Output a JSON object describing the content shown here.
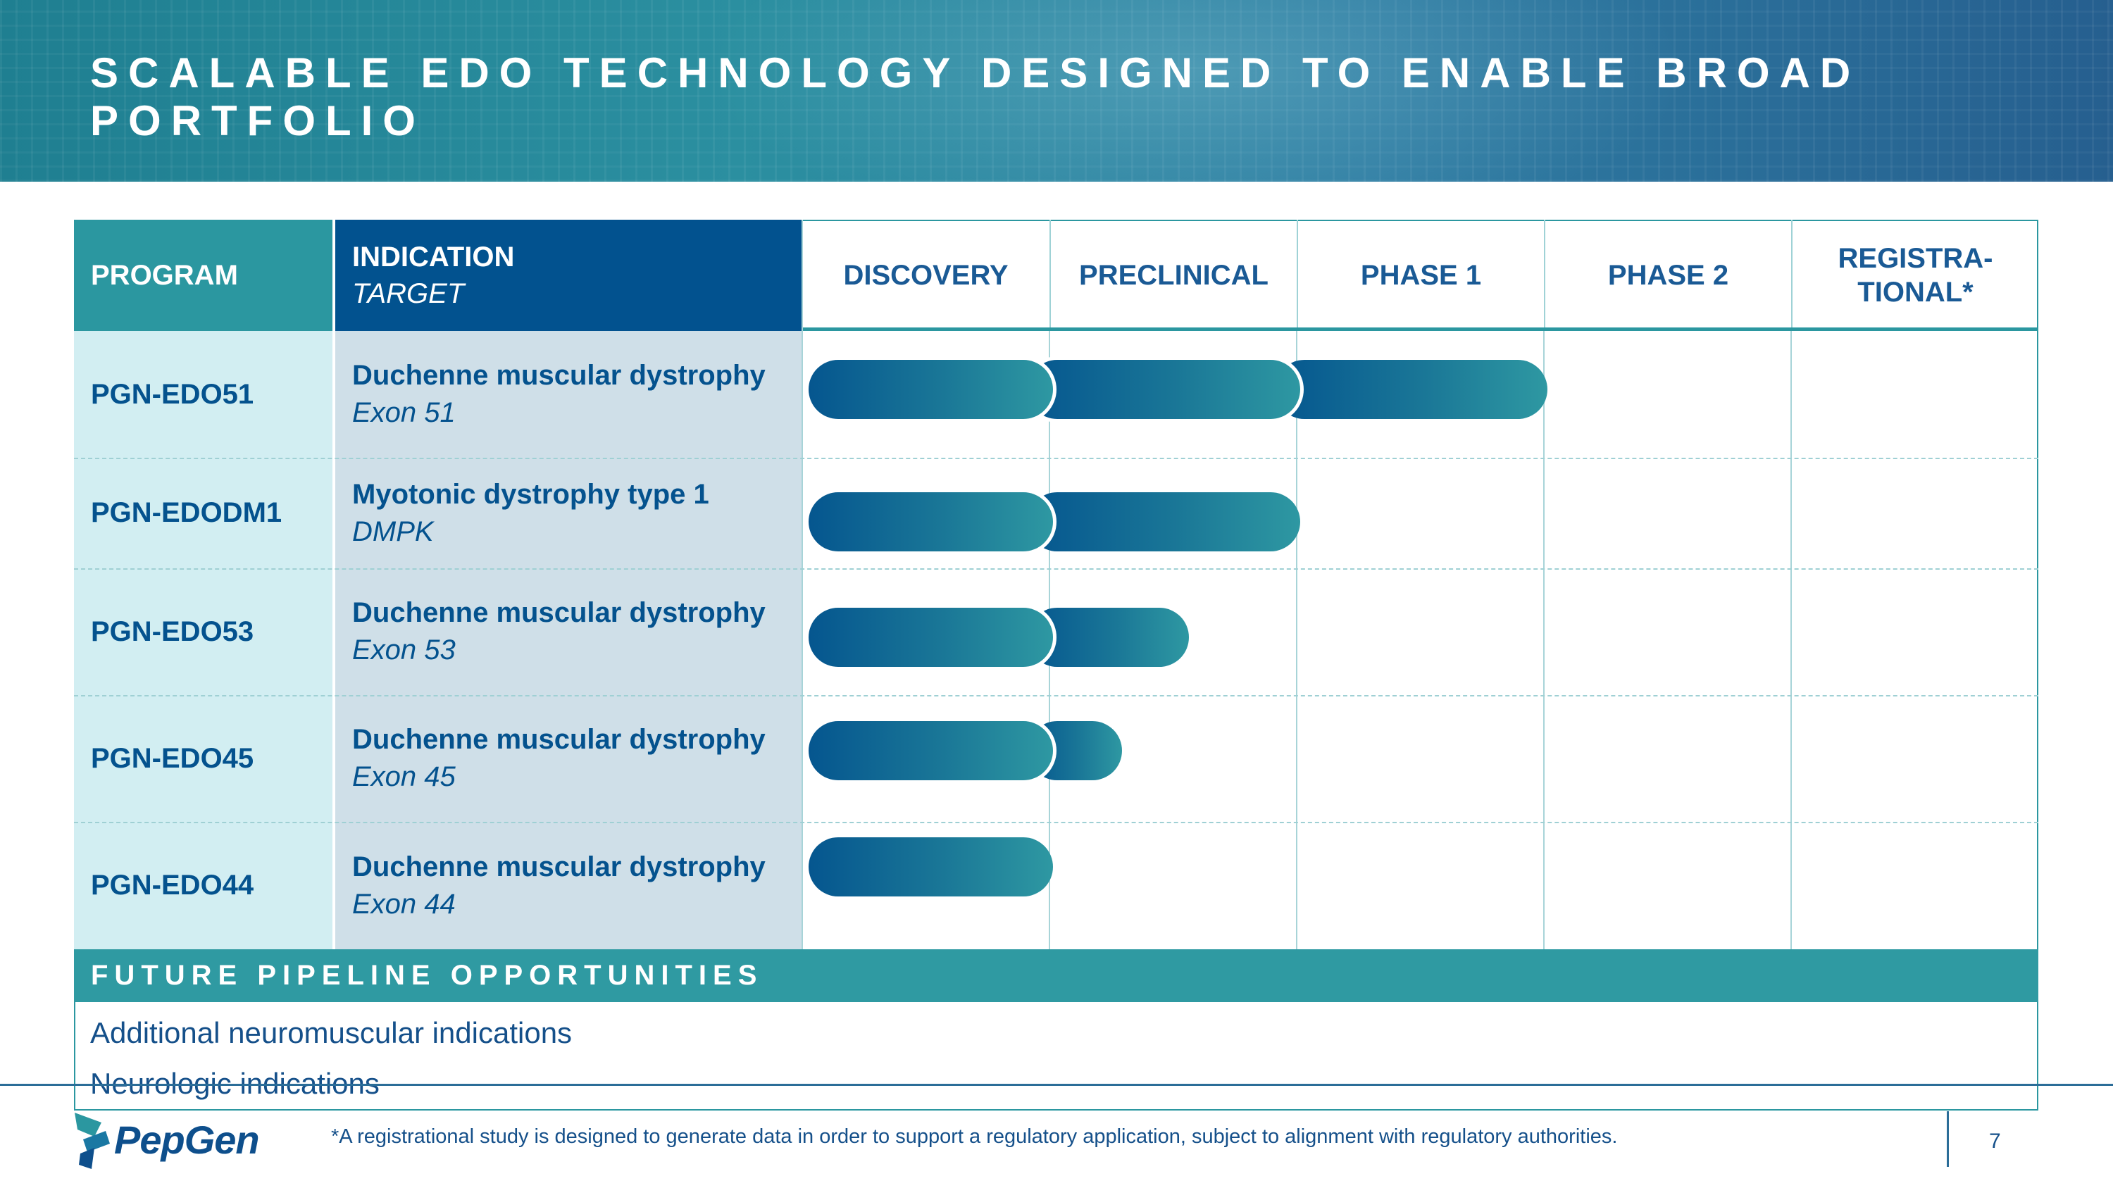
{
  "title": "SCALABLE EDO TECHNOLOGY DESIGNED TO ENABLE BROAD PORTFOLIO",
  "table": {
    "headers": {
      "program": "PROGRAM",
      "indication": "INDICATION",
      "target": "TARGET",
      "stages": [
        "DISCOVERY",
        "PRECLINICAL",
        "PHASE 1",
        "PHASE 2",
        "REGISTRA-\nTIONAL*"
      ]
    },
    "rows": [
      {
        "program": "PGN-EDO51",
        "indication": "Duchenne muscular dystrophy",
        "target": "Exon 51",
        "progress_stages": 3.0
      },
      {
        "program": "PGN-EDODM1",
        "indication": "Myotonic dystrophy type 1",
        "target": "DMPK",
        "progress_stages": 2.0
      },
      {
        "program": "PGN-EDO53",
        "indication": "Duchenne muscular dystrophy",
        "target": "Exon 53",
        "progress_stages": 1.55
      },
      {
        "program": "PGN-EDO45",
        "indication": "Duchenne muscular dystrophy",
        "target": "Exon 45",
        "progress_stages": 1.28
      },
      {
        "program": "PGN-EDO44",
        "indication": "Duchenne muscular dystrophy",
        "target": "Exon 44",
        "progress_stages": 1.0
      }
    ]
  },
  "future": {
    "heading": "FUTURE PIPELINE OPPORTUNITIES",
    "items": [
      "Additional neuromuscular indications",
      "Neurologic indications"
    ]
  },
  "footer": {
    "logo_text": "PepGen",
    "footnote": "*A registrational study is designed to generate data in order to support a regulatory application, subject to alignment with regulatory authorities.",
    "page_number": "7"
  },
  "colors": {
    "teal": "#2b97a0",
    "navy": "#02528f",
    "text_blue": "#04528e"
  }
}
